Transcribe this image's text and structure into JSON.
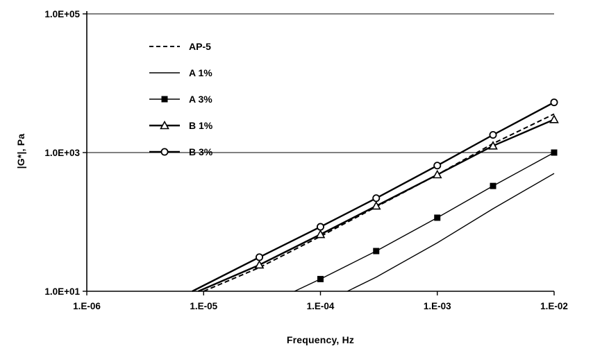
{
  "chart_data": {
    "type": "line",
    "title": "",
    "xlabel": "Frequency, Hz",
    "ylabel": "|G*|, Pa",
    "x_scale": "log",
    "y_scale": "log",
    "xlim": [
      1e-06,
      0.01
    ],
    "ylim": [
      10,
      100000
    ],
    "x_ticks": [
      {
        "value": 1e-06,
        "label": "1.E-06"
      },
      {
        "value": 1e-05,
        "label": "1.E-05"
      },
      {
        "value": 0.0001,
        "label": "1.E-04"
      },
      {
        "value": 0.001,
        "label": "1.E-03"
      },
      {
        "value": 0.01,
        "label": "1.E-02"
      }
    ],
    "y_ticks": [
      {
        "value": 10,
        "label": "1.0E+01"
      },
      {
        "value": 1000,
        "label": "1.0E+03"
      },
      {
        "value": 100000,
        "label": "1.0E+05"
      }
    ],
    "gridlines_y": [
      1000,
      100000
    ],
    "grid": "horizontal-only",
    "legend_position": "upper-left-inside",
    "colors": {
      "line": "#000000",
      "background": "#ffffff",
      "text": "#000000"
    },
    "series": [
      {
        "name": "AP-5",
        "line_style": "dashed",
        "marker": "none",
        "line_width": 2,
        "points": [
          [
            1e-05,
            10
          ],
          [
            3e-05,
            22
          ],
          [
            0.0001,
            62
          ],
          [
            0.0003,
            165
          ],
          [
            0.001,
            480
          ],
          [
            0.003,
            1350
          ],
          [
            0.01,
            3600
          ]
        ],
        "marker_start_index": 0
      },
      {
        "name": "A 1%",
        "line_style": "solid",
        "marker": "none",
        "line_width": 1.4,
        "points": [
          [
            0.00017,
            10
          ],
          [
            0.0003,
            16
          ],
          [
            0.001,
            50
          ],
          [
            0.003,
            155
          ],
          [
            0.01,
            500
          ]
        ],
        "marker_start_index": 0
      },
      {
        "name": "A 3%",
        "line_style": "solid",
        "marker": "square-filled",
        "line_width": 1.4,
        "points": [
          [
            6e-05,
            10
          ],
          [
            0.0001,
            15
          ],
          [
            0.0003,
            38
          ],
          [
            0.001,
            115
          ],
          [
            0.003,
            330
          ],
          [
            0.01,
            1000
          ]
        ],
        "marker_start_index": 1
      },
      {
        "name": "B 1%",
        "line_style": "solid",
        "marker": "triangle-open",
        "line_width": 2.4,
        "points": [
          [
            9e-06,
            10
          ],
          [
            3e-05,
            24
          ],
          [
            0.0001,
            66
          ],
          [
            0.0003,
            170
          ],
          [
            0.001,
            480
          ],
          [
            0.003,
            1250
          ],
          [
            0.01,
            3000
          ]
        ],
        "marker_start_index": 1
      },
      {
        "name": "B 3%",
        "line_style": "solid",
        "marker": "circle-open",
        "line_width": 2.4,
        "points": [
          [
            8e-06,
            10
          ],
          [
            3e-05,
            31
          ],
          [
            0.0001,
            85
          ],
          [
            0.0003,
            220
          ],
          [
            0.001,
            650
          ],
          [
            0.003,
            1800
          ],
          [
            0.01,
            5300
          ]
        ],
        "marker_start_index": 1
      }
    ]
  }
}
